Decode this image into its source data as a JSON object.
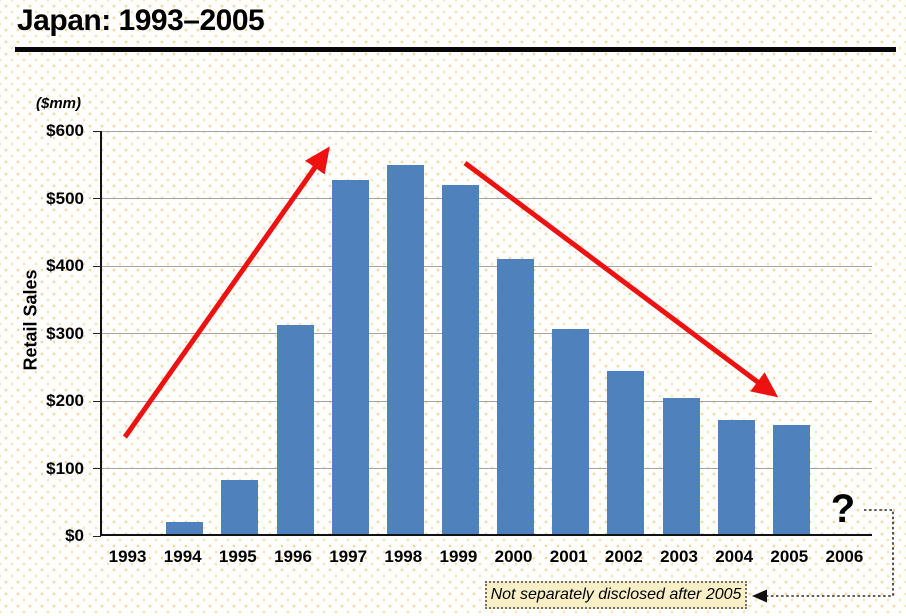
{
  "header": {
    "title": "Japan: 1993–2005"
  },
  "chart_data": {
    "type": "bar",
    "title": "Japan: 1993–2005",
    "units_label": "($mm)",
    "ylabel": "Retail Sales",
    "xlabel": "",
    "categories": [
      "1993",
      "1994",
      "1995",
      "1996",
      "1997",
      "1998",
      "1999",
      "2000",
      "2001",
      "2002",
      "2003",
      "2004",
      "2005",
      "2006"
    ],
    "values": [
      0,
      18,
      80,
      310,
      525,
      547,
      517,
      407,
      304,
      241,
      201,
      169,
      162,
      null
    ],
    "ylim": [
      0,
      600
    ],
    "ytick_interval": 100,
    "ytick_labels": [
      "$0",
      "$100",
      "$200",
      "$300",
      "$400",
      "$500",
      "$600"
    ],
    "grid": true,
    "legend": "none",
    "bar_color": "#4f81bd",
    "grid_color": "#a3a3a3",
    "arrow_color": "#ee1111",
    "annotations": [
      {
        "type": "arrow",
        "direction": "up",
        "note": "rise from 1993 to 1997-1998 peak",
        "color": "#ee1111"
      },
      {
        "type": "arrow",
        "direction": "down",
        "note": "decline from 1999 to 2005",
        "color": "#ee1111"
      },
      {
        "type": "text",
        "text": "?",
        "x": "2006"
      },
      {
        "type": "callout",
        "text": "Not separately disclosed after 2005",
        "points_to": "2006"
      }
    ]
  }
}
